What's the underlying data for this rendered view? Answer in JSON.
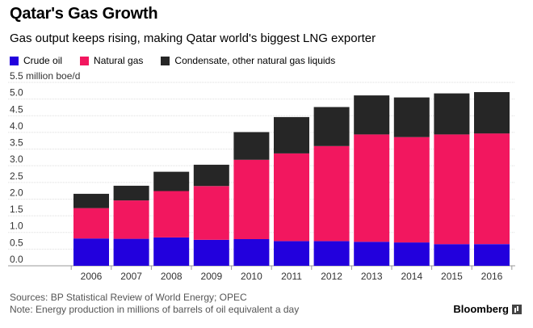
{
  "header": {
    "title": "Qatar's Gas Growth",
    "subtitle": "Gas output keeps rising, making Qatar world's biggest LNG exporter"
  },
  "footer": {
    "sources": "Sources: BP Statistical Review of World Energy; OPEC",
    "note": "Note: Energy production in millions of barrels of oil equivalent a day",
    "brand": "Bloomberg"
  },
  "chart_data": {
    "type": "bar",
    "stacked": true,
    "unit_label": "5.5 million boe/d",
    "categories": [
      "2006",
      "2007",
      "2008",
      "2009",
      "2010",
      "2011",
      "2012",
      "2013",
      "2014",
      "2015",
      "2016"
    ],
    "series": [
      {
        "name": "Crude oil",
        "color": "#2200dd",
        "values": [
          0.82,
          0.81,
          0.85,
          0.78,
          0.8,
          0.74,
          0.74,
          0.72,
          0.7,
          0.65,
          0.65
        ]
      },
      {
        "name": "Natural gas",
        "color": "#f2175f",
        "values": [
          0.91,
          1.15,
          1.39,
          1.61,
          2.38,
          2.63,
          2.85,
          3.22,
          3.16,
          3.29,
          3.32
        ]
      },
      {
        "name": "Condensate, other natural gas liquids",
        "color": "#262626",
        "values": [
          0.43,
          0.44,
          0.58,
          0.64,
          0.83,
          1.09,
          1.17,
          1.17,
          1.19,
          1.23,
          1.24
        ]
      }
    ],
    "ylim": [
      0,
      5.5
    ],
    "yticks": [
      "0.0",
      "0.5",
      "1.0",
      "1.5",
      "2.0",
      "2.5",
      "3.0",
      "3.5",
      "4.0",
      "4.5",
      "5.0"
    ],
    "grid": true,
    "legend_position": "top-left"
  }
}
